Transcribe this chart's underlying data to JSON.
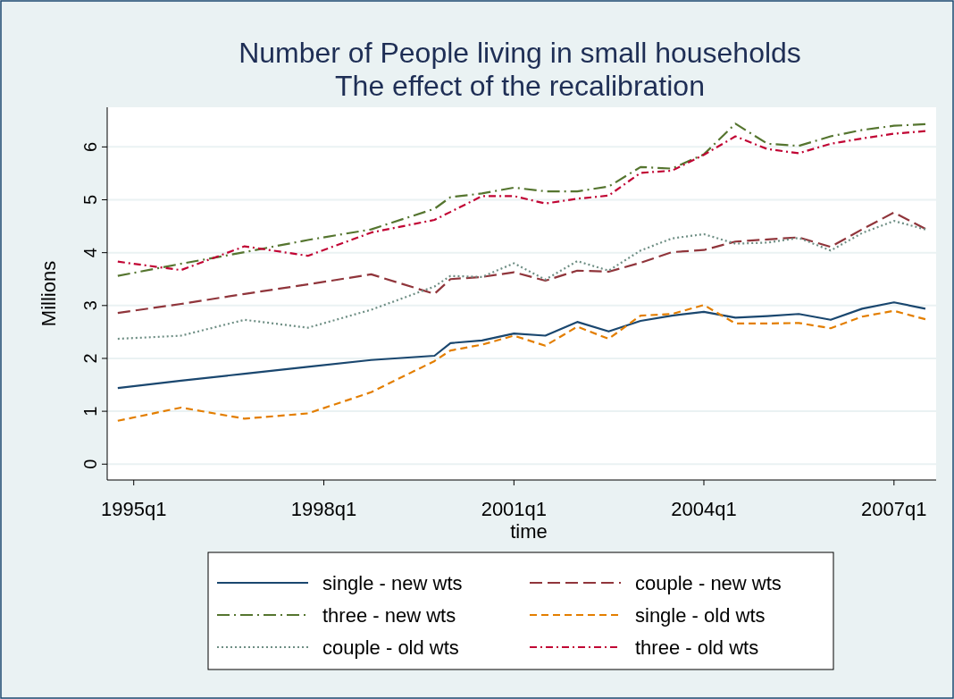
{
  "chart_data": {
    "type": "line",
    "title": "Number of People living in small households",
    "subtitle": "The effect of the recalibration",
    "xlabel": "time",
    "ylabel": "Millions",
    "x": [
      "1994-10",
      "1995-10",
      "1996-10",
      "1997-10",
      "1998-10",
      "1999-10",
      "2000-01",
      "2000-07",
      "2001-01",
      "2001-07",
      "2002-01",
      "2002-07",
      "2003-01",
      "2003-07",
      "2004-01",
      "2004-07",
      "2005-01",
      "2005-07",
      "2006-01",
      "2006-07",
      "2007-01",
      "2007-07"
    ],
    "xlim": [
      "1994-08",
      "2007-09"
    ],
    "xticks": [
      {
        "value": "1995-01",
        "label": "1995q1"
      },
      {
        "value": "1998-01",
        "label": "1998q1"
      },
      {
        "value": "2001-01",
        "label": "2001q1"
      },
      {
        "value": "2004-01",
        "label": "2004q1"
      },
      {
        "value": "2007-01",
        "label": "2007q1"
      }
    ],
    "ylim": [
      -0.3,
      6.75
    ],
    "yticks": [
      0,
      1,
      2,
      3,
      4,
      5,
      6
    ],
    "grid": "y",
    "legend": "bottom",
    "series": [
      {
        "name": "single - new wts",
        "color": "#1a476f",
        "line_style": "solid",
        "values": [
          1.44,
          1.58,
          1.71,
          1.84,
          1.97,
          2.05,
          2.29,
          2.34,
          2.47,
          2.43,
          2.69,
          2.51,
          2.71,
          2.81,
          2.88,
          2.77,
          2.8,
          2.84,
          2.73,
          2.94,
          3.06,
          2.94
        ]
      },
      {
        "name": "couple - new wts",
        "color": "#90353b",
        "line_style": "longdash",
        "values": [
          2.86,
          3.03,
          3.22,
          3.4,
          3.59,
          3.22,
          3.5,
          3.54,
          3.63,
          3.47,
          3.66,
          3.64,
          3.81,
          4.01,
          4.05,
          4.21,
          4.25,
          4.29,
          4.11,
          4.44,
          4.76,
          4.45
        ]
      },
      {
        "name": "three - new wts",
        "color": "#55752f",
        "line_style": "dashdot",
        "values": [
          3.56,
          3.79,
          4.01,
          4.24,
          4.44,
          4.83,
          5.05,
          5.12,
          5.23,
          5.16,
          5.16,
          5.25,
          5.62,
          5.59,
          5.86,
          6.44,
          6.06,
          6.02,
          6.2,
          6.32,
          6.4,
          6.43
        ]
      },
      {
        "name": "single - old wts",
        "color": "#e37e00",
        "line_style": "dashed",
        "values": [
          0.82,
          1.07,
          0.86,
          0.96,
          1.36,
          1.95,
          2.15,
          2.26,
          2.43,
          2.24,
          2.6,
          2.37,
          2.81,
          2.84,
          3.01,
          2.66,
          2.66,
          2.67,
          2.57,
          2.79,
          2.9,
          2.74
        ]
      },
      {
        "name": "couple - old wts",
        "color": "#6e8e84",
        "line_style": "dotted",
        "values": [
          2.37,
          2.43,
          2.73,
          2.58,
          2.92,
          3.36,
          3.56,
          3.54,
          3.8,
          3.49,
          3.84,
          3.66,
          4.04,
          4.27,
          4.35,
          4.17,
          4.19,
          4.28,
          4.04,
          4.37,
          4.6,
          4.44
        ]
      },
      {
        "name": "three - old wts",
        "color": "#c10534",
        "line_style": "dashdotshort",
        "values": [
          3.83,
          3.67,
          4.12,
          3.94,
          4.38,
          4.62,
          4.77,
          5.07,
          5.07,
          4.93,
          5.02,
          5.08,
          5.51,
          5.55,
          5.85,
          6.2,
          5.96,
          5.88,
          6.06,
          6.16,
          6.25,
          6.3
        ]
      }
    ]
  }
}
